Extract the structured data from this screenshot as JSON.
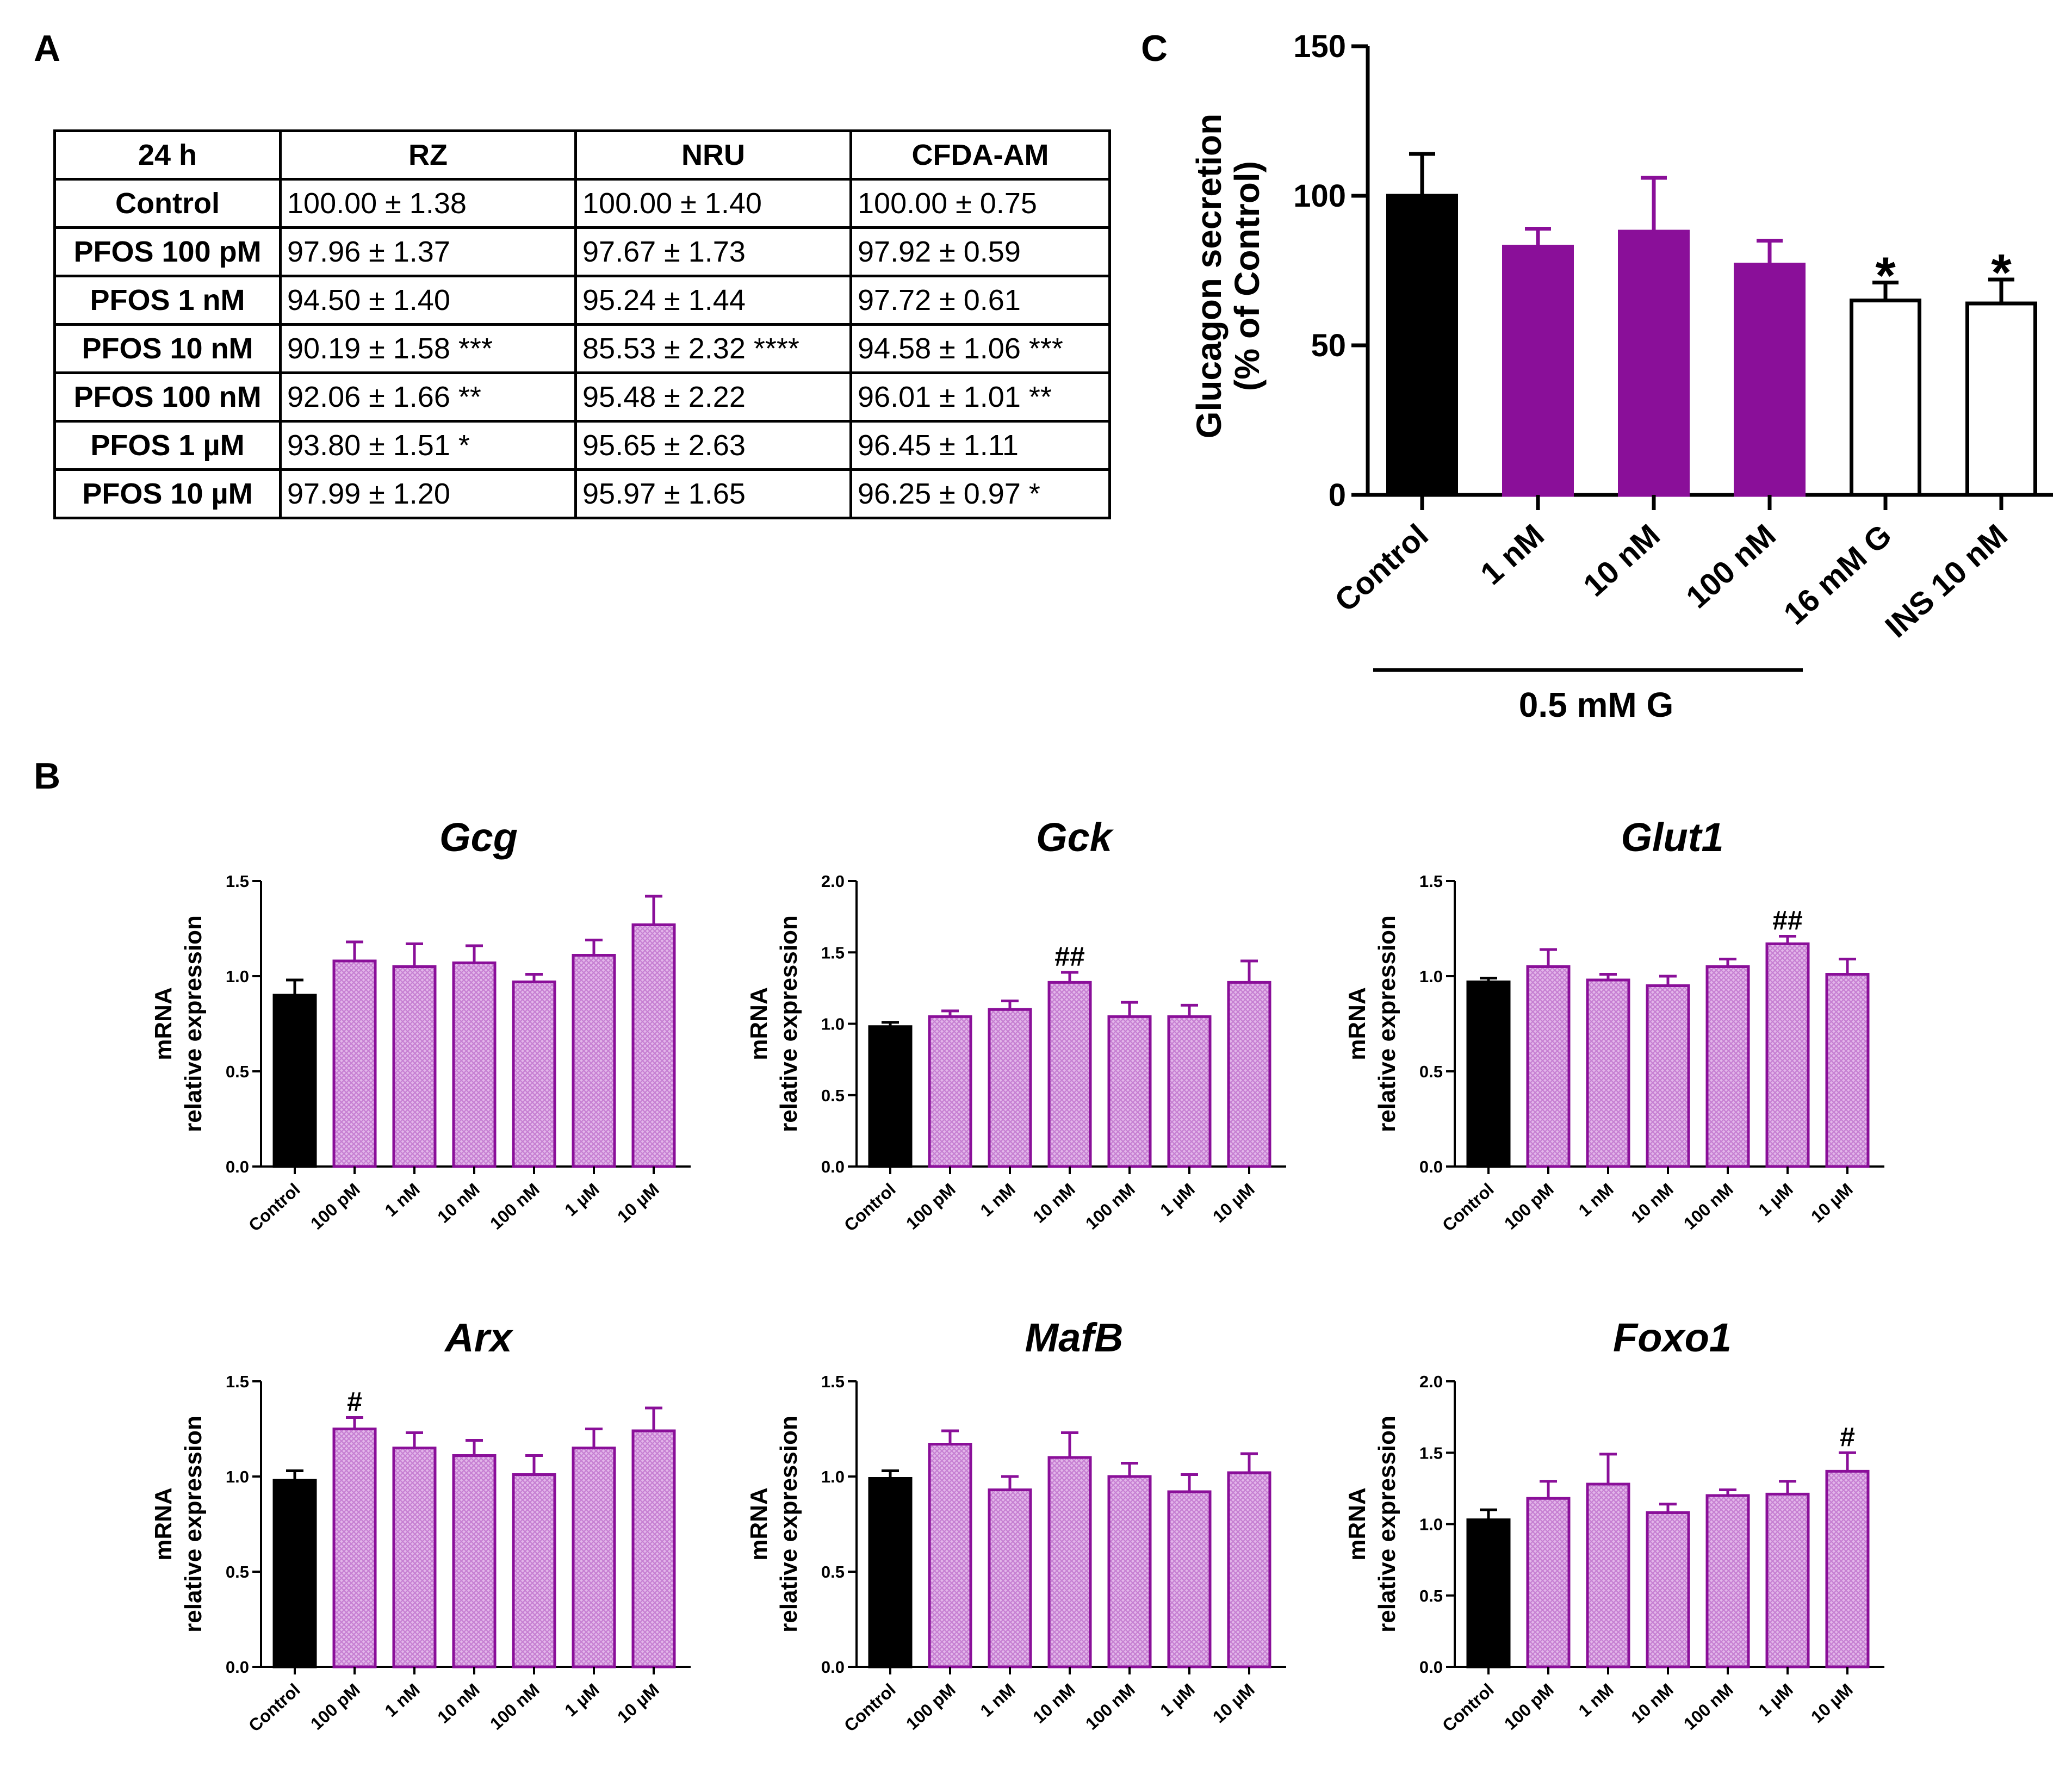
{
  "panels": {
    "a": "A",
    "b": "B",
    "c": "C"
  },
  "table": {
    "headers": [
      "24 h",
      "RZ",
      "NRU",
      "CFDA-AM"
    ],
    "rows": [
      [
        "Control",
        "100.00 ± 1.38",
        "100.00 ± 1.40",
        "100.00 ± 0.75"
      ],
      [
        "PFOS 100 pM",
        "97.96 ± 1.37",
        "97.67 ± 1.73",
        "97.92 ± 0.59"
      ],
      [
        "PFOS 1 nM",
        "94.50 ± 1.40",
        "95.24 ± 1.44",
        "97.72 ± 0.61"
      ],
      [
        "PFOS 10 nM",
        "90.19 ± 1.58 ***",
        "85.53 ± 2.32 ****",
        "94.58 ± 1.06 ***"
      ],
      [
        "PFOS 100 nM",
        "92.06 ± 1.66 **",
        "95.48 ± 2.22",
        "96.01 ± 1.01 **"
      ],
      [
        "PFOS 1 µM",
        "93.80 ± 1.51 *",
        "95.65 ± 2.63",
        "96.45 ± 1.11"
      ],
      [
        "PFOS 10 µM",
        "97.99 ± 1.20",
        "95.97 ± 1.65",
        "96.25 ± 0.97 *"
      ]
    ]
  },
  "colors": {
    "black": "#000000",
    "purple": "#8a0f99",
    "hatch": "#c67fd2",
    "white": "#ffffff"
  },
  "chart_data": [
    {
      "id": "C",
      "type": "bar",
      "title": "",
      "ylabel": [
        "Glucagon secretion",
        "(% of Control)"
      ],
      "xlabel": "",
      "ylim": [
        0,
        150
      ],
      "yticks": [
        "0",
        "50",
        "100",
        "150"
      ],
      "categories": [
        "Control",
        "1 nM",
        "10 nM",
        "100 nM",
        "16 mM G",
        "INS 10 nM"
      ],
      "values": [
        100,
        83,
        88,
        77,
        65,
        64
      ],
      "errors": [
        14,
        6,
        18,
        8,
        6,
        8
      ],
      "fills": [
        "black",
        "purple",
        "purple",
        "purple",
        "white",
        "white"
      ],
      "annotations": [
        "",
        "",
        "",
        "",
        "*",
        "*"
      ],
      "group_label": "0.5 mM G"
    },
    {
      "id": "Gcg",
      "type": "bar",
      "title": "Gcg",
      "ylabel": [
        "mRNA",
        "relative expression"
      ],
      "ylim": [
        0,
        1.5
      ],
      "yticks": [
        "0.0",
        "0.5",
        "1.0",
        "1.5"
      ],
      "categories": [
        "Control",
        "100 pM",
        "1 nM",
        "10 nM",
        "100 nM",
        "1 µM",
        "10 µM"
      ],
      "values": [
        0.9,
        1.08,
        1.05,
        1.07,
        0.97,
        1.11,
        1.27
      ],
      "errors": [
        0.08,
        0.1,
        0.12,
        0.09,
        0.04,
        0.08,
        0.15
      ],
      "annotations": [
        "",
        "",
        "",
        "",
        "",
        "",
        ""
      ]
    },
    {
      "id": "Gck",
      "type": "bar",
      "title": "Gck",
      "ylabel": [
        "mRNA",
        "relative expression"
      ],
      "ylim": [
        0,
        2.0
      ],
      "yticks": [
        "0.0",
        "0.5",
        "1.0",
        "1.5",
        "2.0"
      ],
      "categories": [
        "Control",
        "100 pM",
        "1 nM",
        "10 nM",
        "100 nM",
        "1 µM",
        "10 µM"
      ],
      "values": [
        0.98,
        1.05,
        1.1,
        1.29,
        1.05,
        1.05,
        1.29
      ],
      "errors": [
        0.03,
        0.04,
        0.06,
        0.07,
        0.1,
        0.08,
        0.15
      ],
      "annotations": [
        "",
        "",
        "",
        "##",
        "",
        "",
        ""
      ]
    },
    {
      "id": "Glut1",
      "type": "bar",
      "title": "Glut1",
      "ylabel": [
        "mRNA",
        "relative expression"
      ],
      "ylim": [
        0,
        1.5
      ],
      "yticks": [
        "0.0",
        "0.5",
        "1.0",
        "1.5"
      ],
      "categories": [
        "Control",
        "100 pM",
        "1 nM",
        "10 nM",
        "100 nM",
        "1 µM",
        "10 µM"
      ],
      "values": [
        0.97,
        1.05,
        0.98,
        0.95,
        1.05,
        1.17,
        1.01
      ],
      "errors": [
        0.02,
        0.09,
        0.03,
        0.05,
        0.04,
        0.04,
        0.08
      ],
      "annotations": [
        "",
        "",
        "",
        "",
        "",
        "##",
        ""
      ]
    },
    {
      "id": "Arx",
      "type": "bar",
      "title": "Arx",
      "ylabel": [
        "mRNA",
        "relative expression"
      ],
      "ylim": [
        0,
        1.5
      ],
      "yticks": [
        "0.0",
        "0.5",
        "1.0",
        "1.5"
      ],
      "categories": [
        "Control",
        "100 pM",
        "1 nM",
        "10 nM",
        "100 nM",
        "1 µM",
        "10 µM"
      ],
      "values": [
        0.98,
        1.25,
        1.15,
        1.11,
        1.01,
        1.15,
        1.24
      ],
      "errors": [
        0.05,
        0.06,
        0.08,
        0.08,
        0.1,
        0.1,
        0.12
      ],
      "annotations": [
        "",
        "#",
        "",
        "",
        "",
        "",
        ""
      ]
    },
    {
      "id": "MafB",
      "type": "bar",
      "title": "MafB",
      "ylabel": [
        "mRNA",
        "relative expression"
      ],
      "ylim": [
        0,
        1.5
      ],
      "yticks": [
        "0.0",
        "0.5",
        "1.0",
        "1.5"
      ],
      "categories": [
        "Control",
        "100 pM",
        "1 nM",
        "10 nM",
        "100 nM",
        "1 µM",
        "10 µM"
      ],
      "values": [
        0.99,
        1.17,
        0.93,
        1.1,
        1.0,
        0.92,
        1.02
      ],
      "errors": [
        0.04,
        0.07,
        0.07,
        0.13,
        0.07,
        0.09,
        0.1
      ],
      "annotations": [
        "",
        "",
        "",
        "",
        "",
        "",
        ""
      ]
    },
    {
      "id": "Foxo1",
      "type": "bar",
      "title": "Foxo1",
      "ylabel": [
        "mRNA",
        "relative expression"
      ],
      "ylim": [
        0,
        2.0
      ],
      "yticks": [
        "0.0",
        "0.5",
        "1.0",
        "1.5",
        "2.0"
      ],
      "categories": [
        "Control",
        "100 pM",
        "1 nM",
        "10 nM",
        "100 nM",
        "1 µM",
        "10 µM"
      ],
      "values": [
        1.03,
        1.18,
        1.28,
        1.08,
        1.2,
        1.21,
        1.37
      ],
      "errors": [
        0.07,
        0.12,
        0.21,
        0.06,
        0.04,
        0.09,
        0.13
      ],
      "annotations": [
        "",
        "",
        "",
        "",
        "",
        "",
        "#"
      ]
    }
  ]
}
